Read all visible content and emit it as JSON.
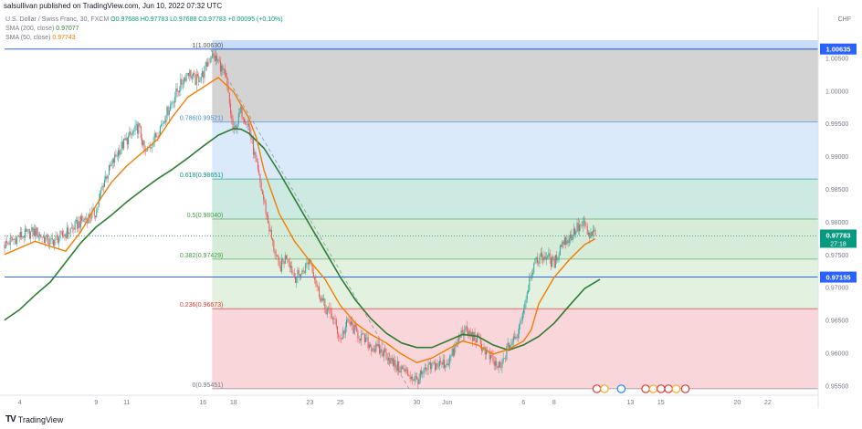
{
  "header": {
    "published": "salsullivan published on TradingView.com, Jun 10, 2022 07:32 UTC"
  },
  "legend": {
    "symbol": "U.S. Dollar / Swiss Franc, 30, FXCM",
    "ohlc": "O0.97688 H0.97783 L0.97688 C0.97783 +0.00095 (+0.10%)",
    "sma200_label": "SMA (200, close)",
    "sma200_value": "0.97077",
    "sma50_label": "SMA (50, close)",
    "sma50_value": "0.97743"
  },
  "currency": "CHF",
  "footer": {
    "logo": "TV",
    "brand": "TradingView"
  },
  "colors": {
    "sma200": "#2e7d32",
    "sma50": "#f57c00",
    "candle_up": "#26a69a",
    "candle_down": "#ef5350",
    "hline": "#2962ff",
    "current_price": "#089981"
  },
  "chart_data": {
    "type": "candlestick",
    "ylim": [
      0.9538,
      1.0077
    ],
    "y_ticks": [
      "1.00500",
      "1.00000",
      "0.99500",
      "0.99000",
      "0.98500",
      "0.98000",
      "0.97500",
      "0.97000",
      "0.96500",
      "0.96000",
      "0.95500"
    ],
    "x_ticks": [
      {
        "label": "4",
        "day": 4
      },
      {
        "label": "9",
        "day": 9
      },
      {
        "label": "11",
        "day": 11
      },
      {
        "label": "16",
        "day": 16
      },
      {
        "label": "18",
        "day": 18
      },
      {
        "label": "23",
        "day": 23
      },
      {
        "label": "25",
        "day": 25
      },
      {
        "label": "30",
        "day": 30
      },
      {
        "label": "Jun",
        "day": 32
      },
      {
        "label": "6",
        "day": 37
      },
      {
        "label": "8",
        "day": 39
      },
      {
        "label": "13",
        "day": 44
      },
      {
        "label": "15",
        "day": 46
      },
      {
        "label": "20",
        "day": 51
      },
      {
        "label": "22",
        "day": 53
      }
    ],
    "fibonacci": [
      {
        "label": "1(1.00630)",
        "price": 1.0063,
        "fill": "#d3d3d3"
      },
      {
        "label": "0.786(0.99521)",
        "price": 0.99521,
        "fill": "#dbeafa",
        "color": "#4a90d9"
      },
      {
        "label": "0.618(0.98651)",
        "price": 0.98651,
        "fill": "#cce9e2",
        "color": "#089981"
      },
      {
        "label": "0.5(0.98040)",
        "price": 0.9804,
        "fill": "#d6ecd9",
        "color": "#43a047"
      },
      {
        "label": "0.382(0.97429)",
        "price": 0.97429,
        "fill": "#e3f2e0",
        "color": "#43a047"
      },
      {
        "label": "0.236(0.96673)",
        "price": 0.96673,
        "fill": "#f9d6da",
        "color": "#e53935"
      },
      {
        "label": "0(0.95451)",
        "price": 0.95451,
        "fill": null,
        "color": "#787b86"
      }
    ],
    "horizontal_lines": [
      {
        "price": 1.00635,
        "label": "1.00635"
      },
      {
        "price": 0.97155,
        "label": "0.97155"
      }
    ],
    "current_price": {
      "price": 0.97783,
      "label": "0.97783",
      "countdown": "27:18"
    },
    "price_path": [
      [
        3,
        0.9765
      ],
      [
        4,
        0.9778
      ],
      [
        5,
        0.9785
      ],
      [
        6,
        0.9768
      ],
      [
        7,
        0.9782
      ],
      [
        8,
        0.98
      ],
      [
        9,
        0.9815
      ],
      [
        9.5,
        0.9862
      ],
      [
        10.5,
        0.991
      ],
      [
        11,
        0.9925
      ],
      [
        11.8,
        0.9945
      ],
      [
        12.2,
        0.9902
      ],
      [
        13,
        0.9935
      ],
      [
        14,
        0.9985
      ],
      [
        15,
        1.003
      ],
      [
        15.5,
        1.0015
      ],
      [
        16,
        1.0025
      ],
      [
        16.5,
        1.0055
      ],
      [
        17,
        1.0045
      ],
      [
        17.5,
        1.0018
      ],
      [
        18,
        0.9935
      ],
      [
        18.5,
        0.997
      ],
      [
        19,
        0.9945
      ],
      [
        19.5,
        0.9885
      ],
      [
        20,
        0.983
      ],
      [
        20.5,
        0.9772
      ],
      [
        21,
        0.9728
      ],
      [
        21.5,
        0.975
      ],
      [
        22,
        0.9715
      ],
      [
        22.5,
        0.9722
      ],
      [
        23,
        0.9745
      ],
      [
        23.5,
        0.9698
      ],
      [
        24,
        0.9668
      ],
      [
        24.5,
        0.9655
      ],
      [
        25,
        0.962
      ],
      [
        25.5,
        0.9648
      ],
      [
        26,
        0.9632
      ],
      [
        27,
        0.961
      ],
      [
        28,
        0.9598
      ],
      [
        28.5,
        0.9582
      ],
      [
        29,
        0.9575
      ],
      [
        30,
        0.9558
      ],
      [
        30.5,
        0.957
      ],
      [
        31,
        0.958
      ],
      [
        32,
        0.9585
      ],
      [
        32.5,
        0.9605
      ],
      [
        33,
        0.9635
      ],
      [
        34,
        0.962
      ],
      [
        35,
        0.9585
      ],
      [
        35.5,
        0.9575
      ],
      [
        36,
        0.961
      ],
      [
        36.5,
        0.9622
      ],
      [
        37,
        0.9668
      ],
      [
        37.5,
        0.9725
      ],
      [
        38,
        0.9745
      ],
      [
        38.5,
        0.9748
      ],
      [
        39,
        0.9735
      ],
      [
        39.5,
        0.9768
      ],
      [
        40,
        0.9775
      ],
      [
        40.5,
        0.979
      ],
      [
        41,
        0.9795
      ],
      [
        41.3,
        0.9775
      ],
      [
        41.7,
        0.9785
      ]
    ],
    "sma200_path": [
      [
        3,
        0.965
      ],
      [
        4,
        0.9666
      ],
      [
        5,
        0.9688
      ],
      [
        6,
        0.9708
      ],
      [
        7,
        0.9738
      ],
      [
        8,
        0.9768
      ],
      [
        9,
        0.9792
      ],
      [
        10,
        0.981
      ],
      [
        11,
        0.983
      ],
      [
        12,
        0.9848
      ],
      [
        13,
        0.9865
      ],
      [
        14,
        0.988
      ],
      [
        15,
        0.9897
      ],
      [
        16,
        0.9915
      ],
      [
        17,
        0.9932
      ],
      [
        18,
        0.9942
      ],
      [
        18.5,
        0.9941
      ],
      [
        19,
        0.9935
      ],
      [
        20,
        0.9912
      ],
      [
        21,
        0.9875
      ],
      [
        22,
        0.9835
      ],
      [
        23,
        0.9795
      ],
      [
        24,
        0.9755
      ],
      [
        25,
        0.9715
      ],
      [
        26,
        0.968
      ],
      [
        27,
        0.9652
      ],
      [
        28,
        0.963
      ],
      [
        29,
        0.9615
      ],
      [
        30,
        0.9608
      ],
      [
        31,
        0.9608
      ],
      [
        32,
        0.9618
      ],
      [
        33,
        0.9628
      ],
      [
        34,
        0.9625
      ],
      [
        35,
        0.9612
      ],
      [
        36,
        0.9604
      ],
      [
        37,
        0.9612
      ],
      [
        38,
        0.9625
      ],
      [
        39,
        0.9645
      ],
      [
        40,
        0.9672
      ],
      [
        41,
        0.9698
      ],
      [
        42,
        0.9712
      ]
    ],
    "sma50_path": [
      [
        3,
        0.975
      ],
      [
        5,
        0.977
      ],
      [
        7,
        0.9755
      ],
      [
        8,
        0.9785
      ],
      [
        9,
        0.9825
      ],
      [
        10,
        0.986
      ],
      [
        11,
        0.9885
      ],
      [
        12,
        0.9905
      ],
      [
        13,
        0.9925
      ],
      [
        14,
        0.996
      ],
      [
        15,
        0.999
      ],
      [
        16,
        1.0005
      ],
      [
        17,
        1.002
      ],
      [
        18,
        0.9998
      ],
      [
        19,
        0.9958
      ],
      [
        19.5,
        0.9928
      ],
      [
        20,
        0.9878
      ],
      [
        21,
        0.9812
      ],
      [
        22,
        0.977
      ],
      [
        23,
        0.974
      ],
      [
        24,
        0.9712
      ],
      [
        25,
        0.9672
      ],
      [
        26,
        0.9645
      ],
      [
        27,
        0.9628
      ],
      [
        28,
        0.9615
      ],
      [
        29,
        0.9598
      ],
      [
        30,
        0.9585
      ],
      [
        31,
        0.9592
      ],
      [
        32,
        0.9605
      ],
      [
        33,
        0.9618
      ],
      [
        34,
        0.9612
      ],
      [
        35,
        0.9598
      ],
      [
        36,
        0.9605
      ],
      [
        37,
        0.9618
      ],
      [
        37.5,
        0.9635
      ],
      [
        38,
        0.9675
      ],
      [
        39,
        0.9715
      ],
      [
        40,
        0.9742
      ],
      [
        41,
        0.9765
      ],
      [
        41.7,
        0.9774
      ]
    ],
    "trendline": [
      [
        16.5,
        1.0063
      ],
      [
        29.5,
        0.9545
      ]
    ]
  }
}
